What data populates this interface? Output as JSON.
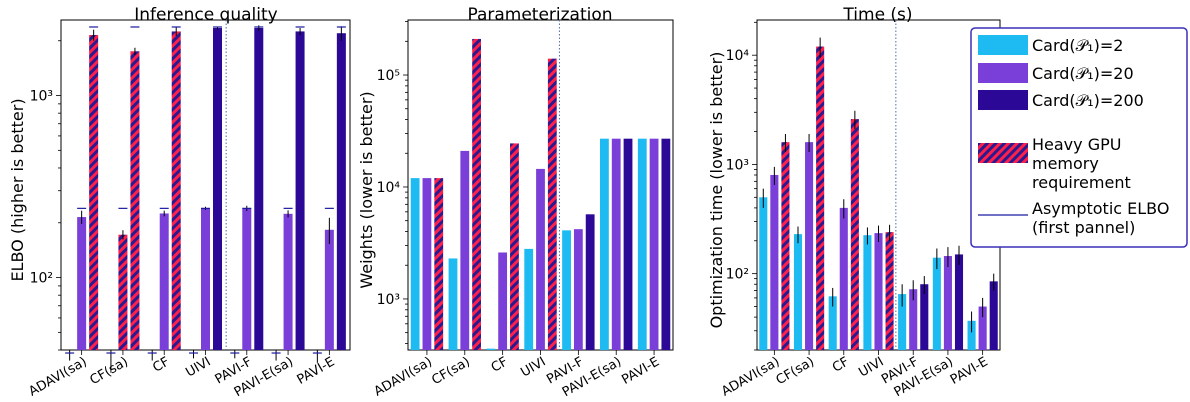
{
  "colors": {
    "card2": "#1ebaf2",
    "card20": "#7b3fd9",
    "card200": "#2b0896",
    "hatch_red": "#ff1f4b",
    "hatch_blue": "#2b1a8e",
    "asymptote": "#1a1aa0",
    "separator": "#4a6fb0"
  },
  "legend": {
    "items": [
      {
        "key": "card2",
        "label": "Card(𝒫₁)=2",
        "kind": "color"
      },
      {
        "key": "card20",
        "label": "Card(𝒫₁)=20",
        "kind": "color"
      },
      {
        "key": "card200",
        "label": "Card(𝒫₁)=200",
        "kind": "color"
      },
      {
        "key": "hatch",
        "label": "Heavy GPU memory requirement",
        "kind": "hatch"
      },
      {
        "key": "asymptote",
        "label": "Asymptotic ELBO (first pannel)",
        "kind": "line"
      }
    ]
  },
  "chart_data": [
    {
      "type": "bar",
      "title": "Inference quality",
      "xlabel": "",
      "ylabel": "ELBO (higher is better)",
      "yscale": "log",
      "ylim": [
        40,
        2600
      ],
      "yticks": [
        {
          "v": 100,
          "label": "10²"
        },
        {
          "v": 1000,
          "label": "10³"
        }
      ],
      "categories": [
        "ADAVI(sa)",
        "CF(sa)",
        "CF",
        "UIVI",
        "PAVI-F",
        "PAVI-E(sa)",
        "PAVI-E"
      ],
      "separator_after": 3,
      "series": [
        {
          "name": "Card(𝒫₁)=2",
          "color_key": "card2",
          "values": [
            33,
            29,
            34,
            35,
            35,
            34,
            32
          ],
          "errors": [
            2,
            1,
            1,
            1,
            1,
            1,
            2
          ],
          "hatched": [
            false,
            false,
            false,
            false,
            false,
            false,
            false
          ],
          "asymptote": [
            38.5,
            38.5,
            38.5,
            38.5,
            38.5,
            38.5,
            38.5
          ]
        },
        {
          "name": "Card(𝒫₁)=20",
          "color_key": "card20",
          "values": [
            215,
            172,
            225,
            240,
            240,
            224,
            183
          ],
          "errors": [
            18,
            10,
            8,
            5,
            8,
            10,
            30
          ],
          "hatched": [
            false,
            true,
            false,
            false,
            false,
            false,
            false
          ],
          "asymptote": [
            240,
            240,
            240,
            240,
            240,
            240,
            240
          ]
        },
        {
          "name": "Card(𝒫₁)=200",
          "color_key": "card200",
          "values": [
            2150,
            1750,
            2250,
            2350,
            2350,
            2250,
            2200
          ],
          "errors": [
            150,
            80,
            120,
            40,
            80,
            100,
            200
          ],
          "hatched": [
            true,
            true,
            true,
            false,
            false,
            false,
            false
          ],
          "asymptote": [
            2380,
            2380,
            2380,
            2380,
            2380,
            2380,
            2380
          ]
        }
      ]
    },
    {
      "type": "bar",
      "title": "Parameterization",
      "xlabel": "",
      "ylabel": "Weights (lower is better)",
      "yscale": "log",
      "ylim": [
        350,
        310000
      ],
      "yticks": [
        {
          "v": 1000,
          "label": "10³"
        },
        {
          "v": 10000,
          "label": "10⁴"
        },
        {
          "v": 100000,
          "label": "10⁵"
        }
      ],
      "categories": [
        "ADAVI(sa)",
        "CF(sa)",
        "CF",
        "UIVI",
        "PAVI-F",
        "PAVI-E(sa)",
        "PAVI-E"
      ],
      "separator_after": 3,
      "series": [
        {
          "name": "Card(𝒫₁)=2",
          "color_key": "card2",
          "values": [
            12000,
            2300,
            360,
            2800,
            4100,
            27000,
            27000
          ],
          "hatched": [
            false,
            false,
            false,
            false,
            false,
            false,
            false
          ]
        },
        {
          "name": "Card(𝒫₁)=20",
          "color_key": "card20",
          "values": [
            12000,
            21000,
            2600,
            14500,
            4200,
            27000,
            27000
          ],
          "hatched": [
            false,
            false,
            false,
            false,
            false,
            false,
            false
          ]
        },
        {
          "name": "Card(𝒫₁)=200",
          "color_key": "card200",
          "values": [
            12000,
            210000,
            24500,
            140000,
            5700,
            27000,
            27000
          ],
          "hatched": [
            true,
            true,
            true,
            true,
            false,
            false,
            false
          ]
        }
      ]
    },
    {
      "type": "bar",
      "title": "Time (s)",
      "xlabel": "",
      "ylabel": "Optimization time (lower is better)",
      "yscale": "log",
      "ylim": [
        20,
        21000
      ],
      "yticks": [
        {
          "v": 100,
          "label": "10²"
        },
        {
          "v": 1000,
          "label": "10³"
        },
        {
          "v": 10000,
          "label": "10⁴"
        }
      ],
      "categories": [
        "ADAVI(sa)",
        "CF(sa)",
        "CF",
        "UIVI",
        "PAVI-F",
        "PAVI-E(sa)",
        "PAVI-E"
      ],
      "separator_after": 3,
      "series": [
        {
          "name": "Card(𝒫₁)=2",
          "color_key": "card2",
          "values": [
            500,
            230,
            62,
            225,
            65,
            140,
            37
          ],
          "errors": [
            100,
            40,
            12,
            40,
            15,
            30,
            8
          ],
          "hatched": [
            false,
            false,
            false,
            false,
            false,
            false,
            false
          ]
        },
        {
          "name": "Card(𝒫₁)=20",
          "color_key": "card20",
          "values": [
            800,
            1600,
            400,
            235,
            72,
            145,
            50
          ],
          "errors": [
            150,
            300,
            80,
            40,
            15,
            30,
            10
          ],
          "hatched": [
            false,
            false,
            false,
            false,
            false,
            false,
            false
          ]
        },
        {
          "name": "Card(𝒫₁)=200",
          "color_key": "card200",
          "values": [
            1600,
            12000,
            2600,
            240,
            80,
            150,
            85
          ],
          "errors": [
            300,
            2500,
            500,
            40,
            15,
            30,
            15
          ],
          "hatched": [
            true,
            true,
            true,
            true,
            false,
            false,
            false
          ]
        }
      ]
    }
  ]
}
